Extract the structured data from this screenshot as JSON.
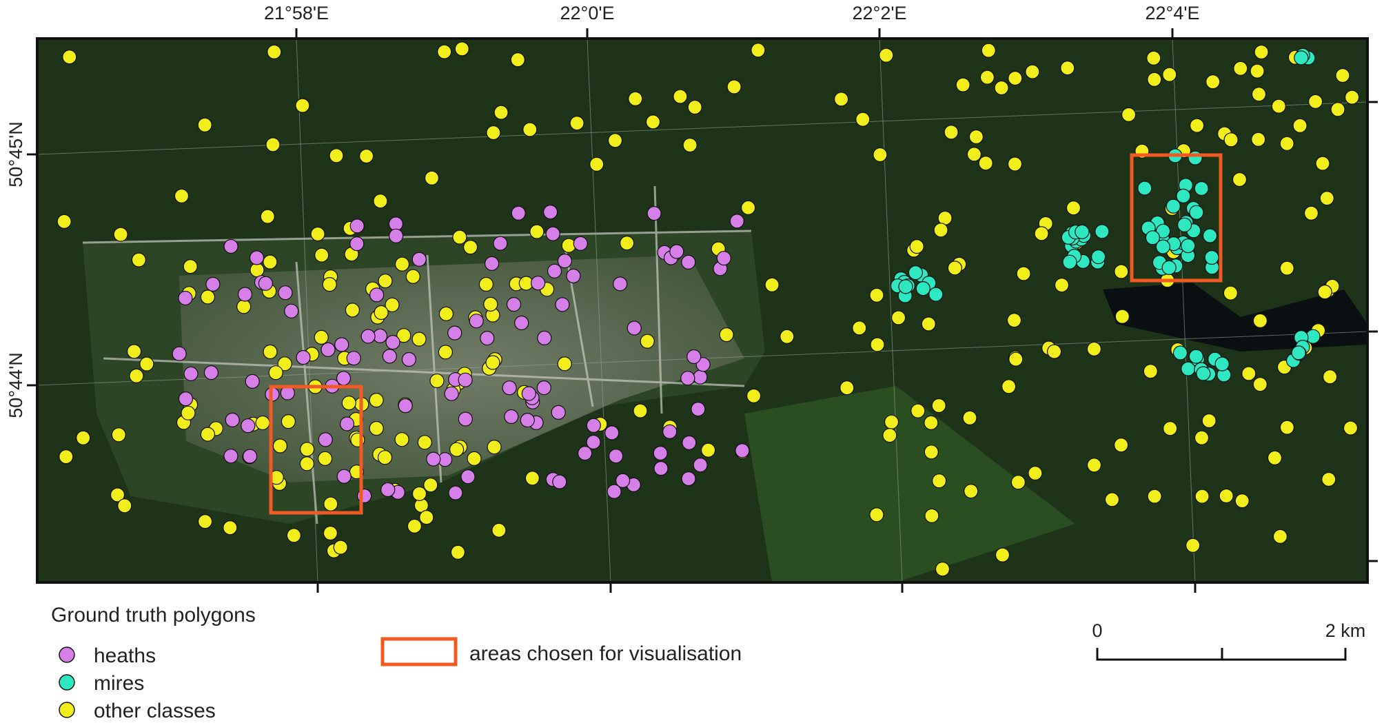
{
  "map": {
    "lon_labels": [
      "21°58'E",
      "22°0'E",
      "22°2'E",
      "22°4'E"
    ],
    "lat_labels": [
      "50°45'N",
      "50°44'N"
    ]
  },
  "legend": {
    "title": "Ground truth polygons",
    "items": [
      "heaths",
      "mires",
      "other classes"
    ],
    "area_label": "areas chosen for visualisation"
  },
  "scale_bar": {
    "labels": [
      "0",
      "2 km"
    ]
  }
}
